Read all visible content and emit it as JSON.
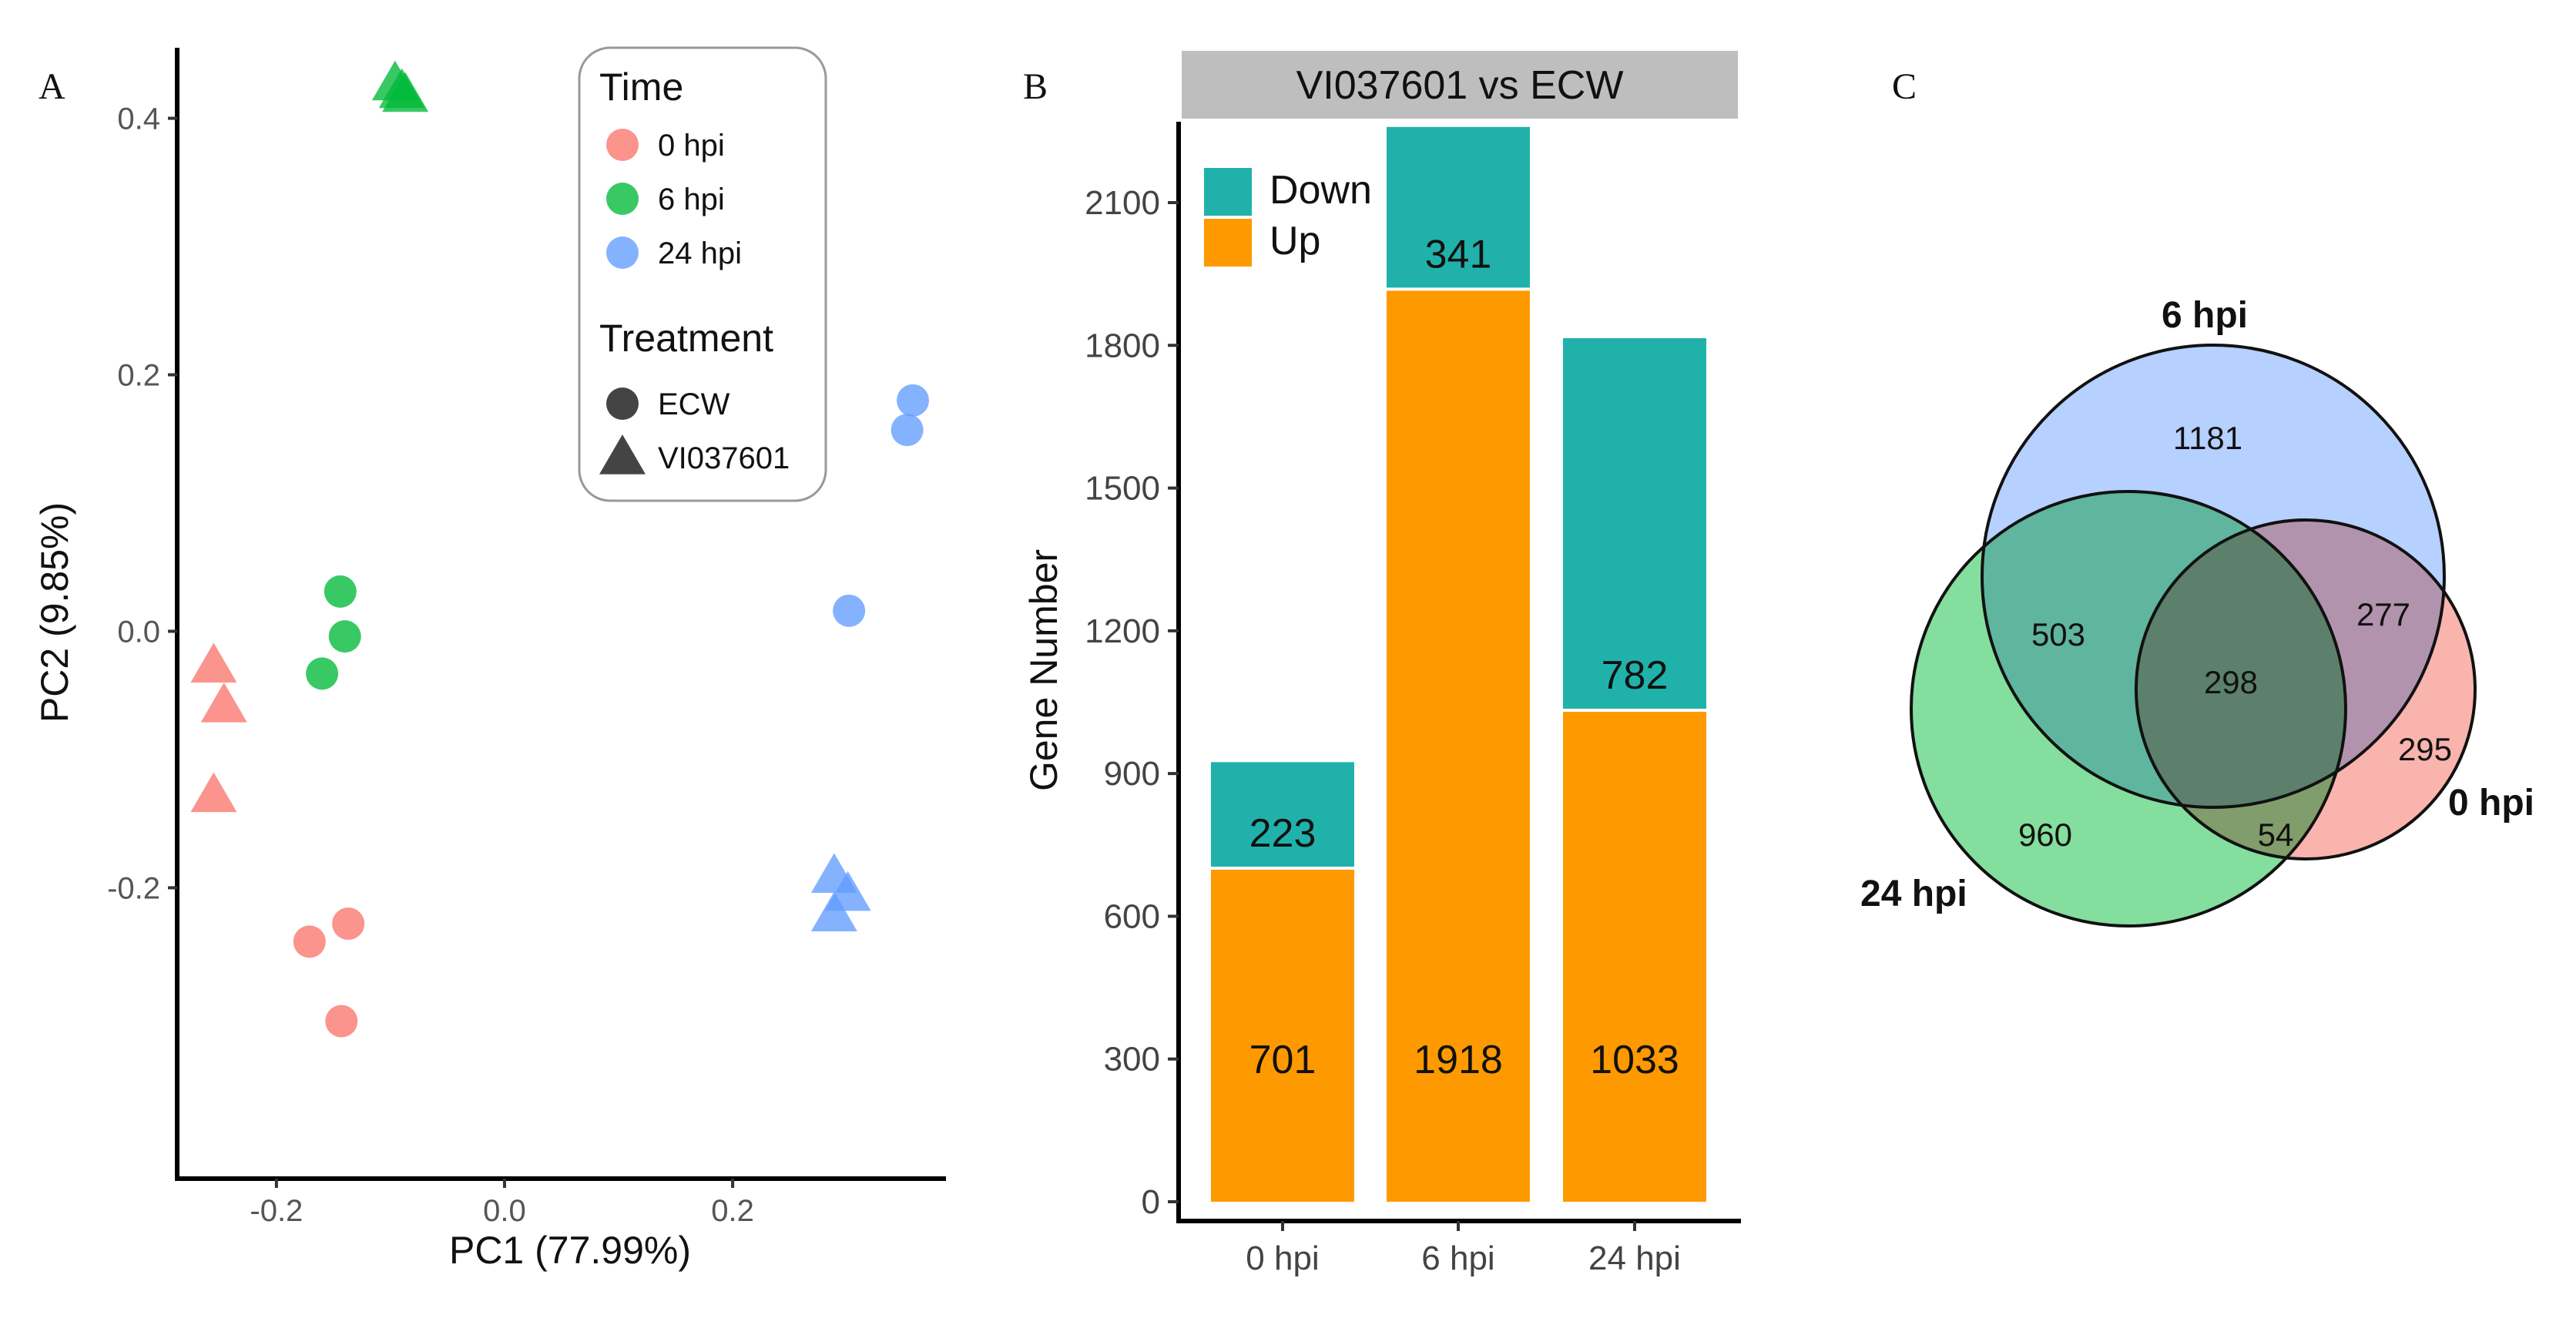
{
  "panels": {
    "a": "A",
    "b": "B",
    "c": "C"
  },
  "colors": {
    "t0": "#F8766D",
    "t6": "#00BA38",
    "t24": "#619CFF",
    "down": "#20B2AA",
    "up": "#FF9900",
    "strip": "#BEBEBE"
  },
  "chart_data": [
    {
      "type": "scatter",
      "xlabel": "PC1 (77.99%)",
      "ylabel": "PC2 (9.85%)",
      "xlim": [
        -0.285,
        0.385
      ],
      "ylim": [
        -0.425,
        0.455
      ],
      "xticks": [
        -0.2,
        0.0,
        0.2
      ],
      "xtick_labels": [
        "-0.2",
        "0.0",
        "0.2"
      ],
      "yticks": [
        -0.2,
        0.0,
        0.2,
        0.4
      ],
      "ytick_labels": [
        "-0.2",
        "0.0",
        "0.2",
        "0.4"
      ],
      "legend": {
        "time_title": "Time",
        "time_items": [
          {
            "key": "t0",
            "label": "0 hpi"
          },
          {
            "key": "t6",
            "label": "6 hpi"
          },
          {
            "key": "t24",
            "label": "24 hpi"
          }
        ],
        "treatment_title": "Treatment",
        "treatment_items": [
          {
            "shape": "circle",
            "label": "ECW"
          },
          {
            "shape": "triangle",
            "label": "VI037601"
          }
        ]
      },
      "points": [
        {
          "x": -0.255,
          "y": -0.027,
          "time": "t0",
          "shape": "triangle"
        },
        {
          "x": -0.246,
          "y": -0.058,
          "time": "t0",
          "shape": "triangle"
        },
        {
          "x": -0.255,
          "y": -0.128,
          "time": "t0",
          "shape": "triangle"
        },
        {
          "x": -0.171,
          "y": -0.242,
          "time": "t0",
          "shape": "circle"
        },
        {
          "x": -0.137,
          "y": -0.228,
          "time": "t0",
          "shape": "circle"
        },
        {
          "x": -0.143,
          "y": -0.304,
          "time": "t0",
          "shape": "circle"
        },
        {
          "x": -0.144,
          "y": 0.031,
          "time": "t6",
          "shape": "circle"
        },
        {
          "x": -0.14,
          "y": -0.004,
          "time": "t6",
          "shape": "circle"
        },
        {
          "x": -0.16,
          "y": -0.033,
          "time": "t6",
          "shape": "circle"
        },
        {
          "x": -0.096,
          "y": 0.427,
          "time": "t6",
          "shape": "triangle"
        },
        {
          "x": -0.09,
          "y": 0.421,
          "time": "t6",
          "shape": "triangle"
        },
        {
          "x": -0.087,
          "y": 0.418,
          "time": "t6",
          "shape": "triangle"
        },
        {
          "x": 0.358,
          "y": 0.18,
          "time": "t24",
          "shape": "circle"
        },
        {
          "x": 0.353,
          "y": 0.157,
          "time": "t24",
          "shape": "circle"
        },
        {
          "x": 0.302,
          "y": 0.016,
          "time": "t24",
          "shape": "circle"
        },
        {
          "x": 0.289,
          "y": -0.191,
          "time": "t24",
          "shape": "triangle"
        },
        {
          "x": 0.301,
          "y": -0.205,
          "time": "t24",
          "shape": "triangle"
        },
        {
          "x": 0.289,
          "y": -0.221,
          "time": "t24",
          "shape": "triangle"
        }
      ]
    },
    {
      "type": "bar",
      "strip_title": "VI037601 vs ECW",
      "ylabel": "Gene Number",
      "categories": [
        "0 hpi",
        "6 hpi",
        "24 hpi"
      ],
      "ylim": [
        0,
        2270
      ],
      "yticks": [
        0,
        300,
        600,
        900,
        1200,
        1500,
        1800,
        2100
      ],
      "ytick_labels": [
        "0",
        "300",
        "600",
        "900",
        "1200",
        "1500",
        "1800",
        "2100"
      ],
      "legend": [
        {
          "key": "down",
          "label": "Down"
        },
        {
          "key": "up",
          "label": "Up"
        }
      ],
      "series": [
        {
          "name": "Up",
          "key": "up",
          "values": [
            701,
            1918,
            1033
          ],
          "labels": [
            "701",
            "1918",
            "1033"
          ]
        },
        {
          "name": "Down",
          "key": "down",
          "values": [
            223,
            341,
            782
          ],
          "labels": [
            "223",
            "341",
            "782"
          ]
        }
      ]
    },
    {
      "type": "venn",
      "sets": [
        {
          "key": "s6",
          "label": "6 hpi",
          "color": "#A9C8FF"
        },
        {
          "key": "s0",
          "label": "0 hpi",
          "color": "#F8A7A0"
        },
        {
          "key": "s24",
          "label": "24 hpi",
          "color": "#6FD88C"
        }
      ],
      "regions": [
        {
          "sets": [
            "6 hpi"
          ],
          "count": "1181"
        },
        {
          "sets": [
            "6 hpi",
            "24 hpi"
          ],
          "count": "503"
        },
        {
          "sets": [
            "6 hpi",
            "0 hpi"
          ],
          "count": "277"
        },
        {
          "sets": [
            "6 hpi",
            "24 hpi",
            "0 hpi"
          ],
          "count": "298"
        },
        {
          "sets": [
            "0 hpi"
          ],
          "count": "295"
        },
        {
          "sets": [
            "24 hpi"
          ],
          "count": "960"
        },
        {
          "sets": [
            "24 hpi",
            "0 hpi"
          ],
          "count": "54"
        }
      ]
    }
  ]
}
